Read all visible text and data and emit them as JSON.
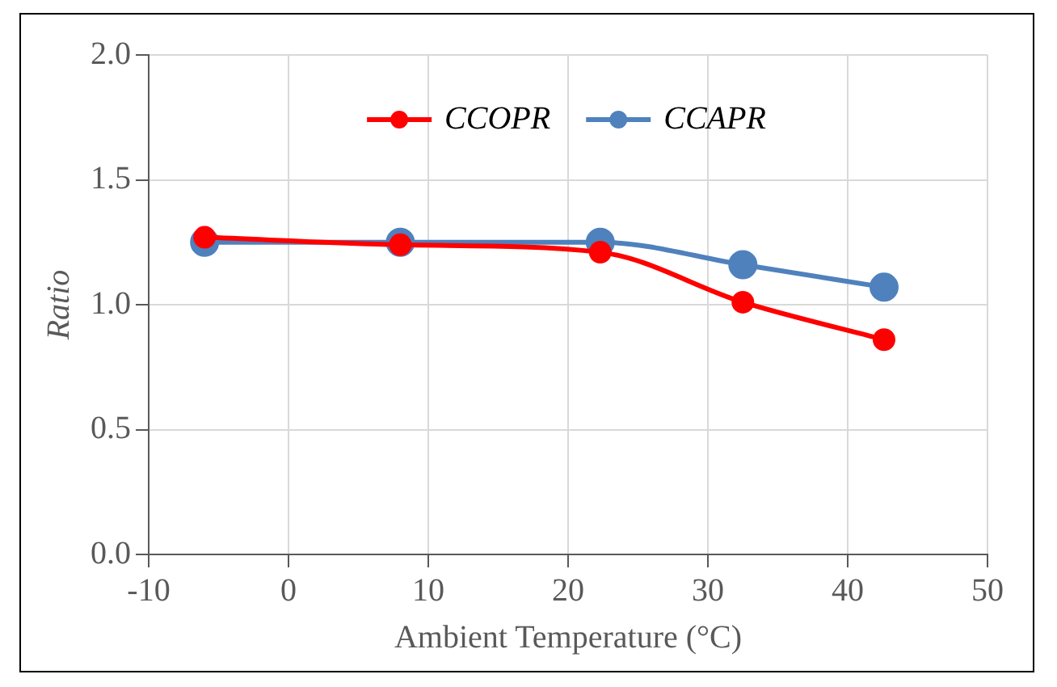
{
  "chart_data": {
    "type": "line",
    "xlabel": "Ambient Temperature (°C)",
    "ylabel": "Ratio",
    "x": [
      -6,
      8,
      22.3,
      32.5,
      42.6
    ],
    "series": [
      {
        "name": "CCOPR",
        "color": "#ff0000",
        "values": [
          1.27,
          1.24,
          1.21,
          1.01,
          0.86
        ]
      },
      {
        "name": "CCAPR",
        "color": "#4f81bd",
        "values": [
          1.25,
          1.25,
          1.25,
          1.16,
          1.07
        ]
      }
    ],
    "xlim": [
      -10,
      50
    ],
    "xticks": [
      -10,
      0,
      10,
      20,
      30,
      40,
      50
    ],
    "ylim": [
      0,
      2
    ],
    "yticks": [
      {
        "value": 0,
        "label": "0.0"
      },
      {
        "value": 0.5,
        "label": "0.5"
      },
      {
        "value": 1,
        "label": "1.0"
      },
      {
        "value": 1.5,
        "label": "1.5"
      },
      {
        "value": 2,
        "label": "2.0"
      }
    ],
    "grid": true,
    "legend": "top",
    "marker": "circle",
    "line_style": "solid"
  }
}
